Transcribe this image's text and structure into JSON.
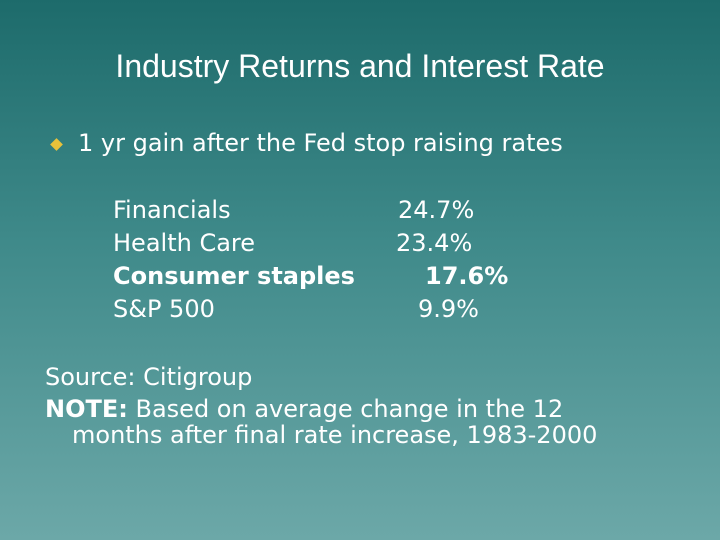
{
  "title": "Industry Returns and Interest Rate",
  "bullet": "1 yr gain after the Fed stop raising rates",
  "table": {
    "rows": [
      [
        "Financials",
        "24.7%"
      ],
      [
        "Health Care",
        "23.4%"
      ],
      [
        "Consumer staples",
        "17.6%"
      ],
      [
        "S&P 500",
        "9.9%"
      ]
    ]
  },
  "source": "Source: Citigroup",
  "note": {
    "label": "NOTE:",
    "text": "Based on average change in the 12 months after final rate increase, 1983-2000"
  }
}
